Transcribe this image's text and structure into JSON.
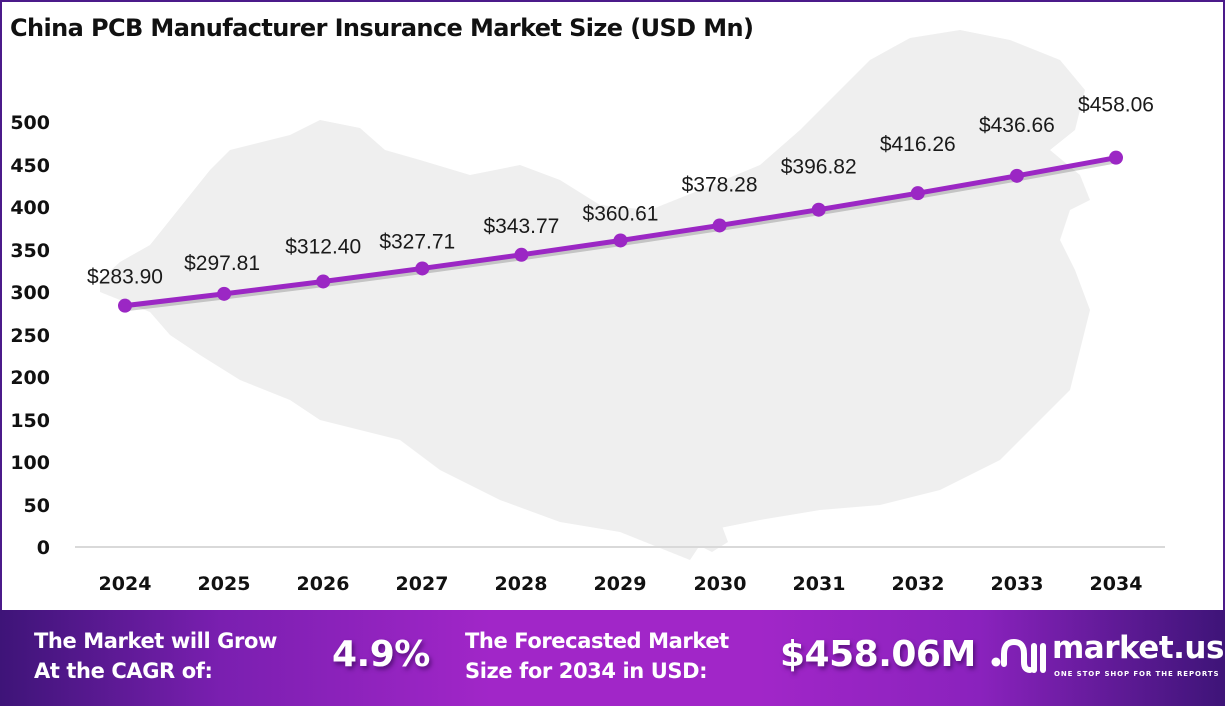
{
  "chart_data": {
    "type": "line",
    "title": "China PCB Manufacturer Insurance Market Size (USD Mn)",
    "xlabel": "",
    "ylabel": "",
    "categories": [
      "2024",
      "2025",
      "2026",
      "2027",
      "2028",
      "2029",
      "2030",
      "2031",
      "2032",
      "2033",
      "2034"
    ],
    "series": [
      {
        "name": "Market Size (USD Mn)",
        "values": [
          283.9,
          297.81,
          312.4,
          327.71,
          343.77,
          360.61,
          378.28,
          396.82,
          416.26,
          436.66,
          458.06
        ],
        "labels": [
          "$283.90",
          "$297.81",
          "$312.40",
          "$327.71",
          "$343.77",
          "$360.61",
          "$378.28",
          "$396.82",
          "$416.26",
          "$436.66",
          "$458.06"
        ],
        "color": "#9b27c4"
      }
    ],
    "ylim": [
      0,
      500
    ],
    "yticks": [
      0,
      50,
      100,
      150,
      200,
      250,
      300,
      350,
      400,
      450,
      500
    ],
    "grid": false,
    "legend": "none",
    "background": "faint grey map of China"
  },
  "header": {
    "title": "China PCB Manufacturer Insurance Market Size (USD Mn)"
  },
  "footer": {
    "cagr_label_line1": "The Market will Grow",
    "cagr_label_line2": "At the CAGR of:",
    "cagr_value": "4.9%",
    "forecast_label_line1": "The Forecasted Market",
    "forecast_label_line2": "Size for 2034 in USD:",
    "forecast_value": "$458.06M",
    "brand_name": "market.us",
    "brand_tagline": "ONE STOP SHOP FOR THE REPORTS"
  },
  "colors": {
    "line": "#9b27c4",
    "frame": "#4b1a8a",
    "footer_dark": "#3e1478",
    "footer_light": "#a126c8",
    "map": "#efefef"
  }
}
